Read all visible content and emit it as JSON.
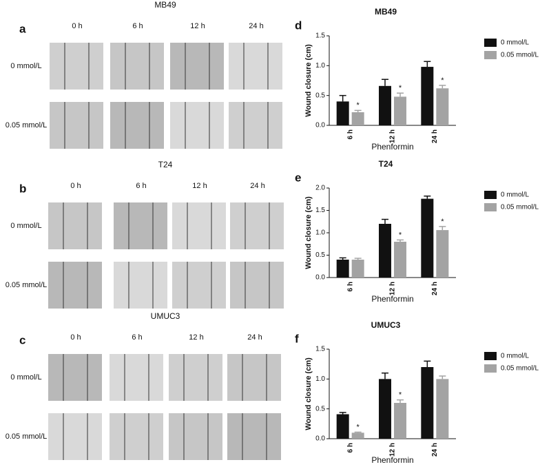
{
  "panels": [
    {
      "letter": "a",
      "title": "MB49",
      "columns": [
        "0 h",
        "6 h",
        "12 h",
        "24 h"
      ],
      "rows": [
        "0 mmol/L",
        "0.05 mmol/L"
      ]
    },
    {
      "letter": "b",
      "title": "T24",
      "columns": [
        "0 h",
        "6 h",
        "12 h",
        "24 h"
      ],
      "rows": [
        "0 mmol/L",
        "0.05 mmol/L"
      ]
    },
    {
      "letter": "c",
      "title": "UMUC3",
      "columns": [
        "0 h",
        "6 h",
        "12 h",
        "24 h"
      ],
      "rows": [
        "0 mmol/L",
        "0.05 mmol/L"
      ]
    }
  ],
  "chart_data": [
    {
      "type": "bar",
      "panel": "d",
      "title": "MB49",
      "xlabel": "Phenformin",
      "ylabel": "Wound closure (cm)",
      "categories": [
        "6 h",
        "12 h",
        "24 h"
      ],
      "series": [
        {
          "name": "0 mmol/L",
          "color": "#111111",
          "values": [
            0.4,
            0.66,
            0.98
          ],
          "errors": [
            0.1,
            0.11,
            0.09
          ],
          "significance": [
            null,
            null,
            null
          ]
        },
        {
          "name": "0.05 mmol/L",
          "color": "#a3a3a3",
          "values": [
            0.22,
            0.48,
            0.62
          ],
          "errors": [
            0.03,
            0.06,
            0.05
          ],
          "significance": [
            "*",
            "*",
            "*"
          ]
        }
      ],
      "ylim": [
        0,
        1.5
      ],
      "yticks": [
        {
          "value": 0,
          "label": "0.0"
        },
        0.5,
        {
          "value": 1,
          "label": "1.0"
        },
        1.5
      ]
    },
    {
      "type": "bar",
      "panel": "e",
      "title": "T24",
      "xlabel": "Phenformin",
      "ylabel": "Wound closure (cm)",
      "categories": [
        "6 h",
        "12 h",
        "24 h"
      ],
      "series": [
        {
          "name": "0 mmol/L",
          "color": "#111111",
          "values": [
            0.4,
            1.2,
            1.76
          ],
          "errors": [
            0.04,
            0.1,
            0.06
          ],
          "significance": [
            null,
            null,
            null
          ]
        },
        {
          "name": "0.05 mmol/L",
          "color": "#a3a3a3",
          "values": [
            0.4,
            0.8,
            1.06
          ],
          "errors": [
            0.03,
            0.04,
            0.08
          ],
          "significance": [
            null,
            "*",
            "*"
          ]
        }
      ],
      "ylim": [
        0,
        2
      ],
      "yticks": [
        {
          "value": 0,
          "label": "0.0"
        },
        0.5,
        {
          "value": 1,
          "label": "1.0"
        },
        1.5,
        {
          "value": 2,
          "label": "2.0"
        }
      ]
    },
    {
      "type": "bar",
      "panel": "f",
      "title": "UMUC3",
      "xlabel": "Phenformin",
      "ylabel": "Wound closure (cm)",
      "categories": [
        "6 h",
        "12 h",
        "24 h"
      ],
      "series": [
        {
          "name": "0 mmol/L",
          "color": "#111111",
          "values": [
            0.41,
            1.0,
            1.2
          ],
          "errors": [
            0.03,
            0.1,
            0.1
          ],
          "significance": [
            null,
            null,
            null
          ]
        },
        {
          "name": "0.05 mmol/L",
          "color": "#a3a3a3",
          "values": [
            0.1,
            0.6,
            1.0
          ],
          "errors": [
            0.01,
            0.05,
            0.05
          ],
          "significance": [
            "*",
            "*",
            null
          ]
        }
      ],
      "ylim": [
        0,
        1.5
      ],
      "yticks": [
        {
          "value": 0,
          "label": "0.0"
        },
        0.5,
        {
          "value": 1,
          "label": "1.0"
        },
        1.5
      ]
    }
  ]
}
